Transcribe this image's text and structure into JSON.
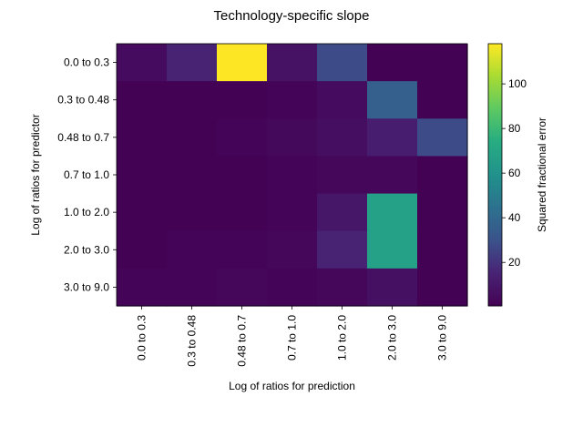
{
  "chart_data": {
    "type": "heatmap",
    "title": "Technology-specific slope",
    "xlabel": "Log of ratios for prediction",
    "ylabel": "Log of ratios for predictor",
    "x_categories": [
      "0.0 to 0.3",
      "0.3 to 0.48",
      "0.48 to 0.7",
      "0.7 to 1.0",
      "1.0 to 2.0",
      "2.0 to 3.0",
      "3.0 to 9.0"
    ],
    "y_categories": [
      "0.0 to 0.3",
      "0.3 to 0.48",
      "0.48 to 0.7",
      "0.7 to 1.0",
      "1.0 to 2.0",
      "2.0 to 3.0",
      "3.0 to 9.0"
    ],
    "values": [
      [
        5,
        15,
        118,
        8,
        28,
        1,
        1
      ],
      [
        1,
        1,
        1,
        2,
        5,
        36,
        1
      ],
      [
        1,
        1,
        2,
        4,
        6,
        13,
        28
      ],
      [
        1,
        1,
        1,
        2,
        3,
        3,
        1
      ],
      [
        1,
        1,
        1,
        2,
        10,
        68,
        1
      ],
      [
        1,
        2,
        2,
        3,
        15,
        68,
        1
      ],
      [
        2,
        2,
        3,
        2,
        3,
        7,
        1
      ]
    ],
    "colormap": "viridis",
    "colorbar": {
      "label": "Squared fractional error",
      "vmin": 0.5,
      "vmax": 118,
      "ticks": [
        20,
        40,
        60,
        80,
        100
      ]
    },
    "grid": false,
    "legend": "none"
  }
}
